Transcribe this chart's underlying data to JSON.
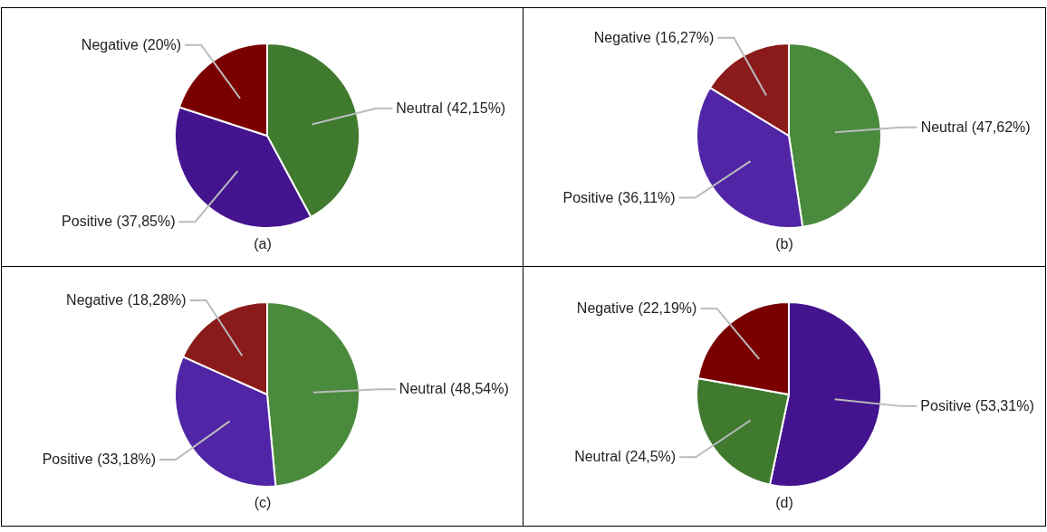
{
  "chart_data": [
    {
      "type": "pie",
      "title": "(a)",
      "categories": [
        "Neutral (42,15%)",
        "Positive (37,85%)",
        "Negative (20%)"
      ],
      "values": [
        42.15,
        37.85,
        20
      ],
      "colors": [
        "#3f7a2e",
        "#44148f",
        "#7a0000"
      ]
    },
    {
      "type": "pie",
      "title": "(b)",
      "categories": [
        "Neutral (47,62%)",
        "Positive (36,11%)",
        "Negative (16,27%)"
      ],
      "values": [
        47.62,
        36.11,
        16.27
      ],
      "colors": [
        "#4a8a3c",
        "#5026a6",
        "#8b1a1a"
      ]
    },
    {
      "type": "pie",
      "title": "(c)",
      "categories": [
        "Neutral (48,54%)",
        "Positive (33,18%)",
        "Negative (18,28%)"
      ],
      "values": [
        48.54,
        33.18,
        18.28
      ],
      "colors": [
        "#4a8a3c",
        "#5026a6",
        "#8b1a1a"
      ]
    },
    {
      "type": "pie",
      "title": "(d)",
      "categories": [
        "Positive (53,31%)",
        "Neutral (24,5%)",
        "Negative (22,19%)"
      ],
      "values": [
        53.31,
        24.5,
        22.19
      ],
      "colors": [
        "#44148f",
        "#3f7a2e",
        "#7a0000"
      ]
    }
  ]
}
